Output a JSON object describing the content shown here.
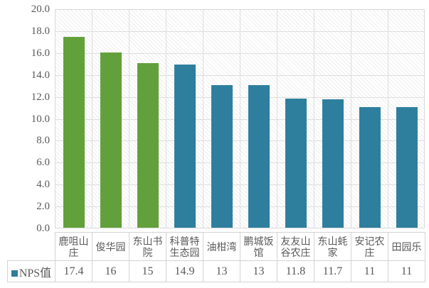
{
  "chart_data": {
    "type": "bar",
    "title": "",
    "series_name": "NPS值",
    "categories": [
      "鹿咀山庄",
      "俊华园",
      "东山书院",
      "科普特生态园",
      "油柑湾",
      "鹏城饭馆",
      "友友山谷农庄",
      "东山蚝家",
      "安记农庄",
      "田园乐"
    ],
    "values": [
      17.4,
      16,
      15,
      14.9,
      13,
      13,
      11.8,
      11.7,
      11,
      11
    ],
    "value_labels": [
      "17.4",
      "16",
      "15",
      "14.9",
      "13",
      "13",
      "11.8",
      "11.7",
      "11",
      "11"
    ],
    "xlabel": "",
    "ylabel": "",
    "ylim": [
      0,
      20
    ],
    "ytick_step": 2,
    "ytick_labels": [
      "0.0",
      "2.0",
      "4.0",
      "6.0",
      "8.0",
      "10.0",
      "12.0",
      "14.0",
      "16.0",
      "18.0",
      "20.0"
    ],
    "grid": true,
    "plot_background_pattern": "light-diagonal-hatch",
    "legend_position": "bottom-table-left",
    "bar_colors": [
      "#62A03C",
      "#62A03C",
      "#62A03C",
      "#2E7F9E",
      "#2E7F9E",
      "#2E7F9E",
      "#2E7F9E",
      "#2E7F9E",
      "#2E7F9E",
      "#2E7F9E"
    ],
    "colors": {
      "green": "#62A03C",
      "teal": "#2E7F9E",
      "gridline": "#DEDEDE",
      "plot_border": "#D9D9D9",
      "table_border": "#D3D3D3",
      "text": "#595959",
      "legend_swatch": "#2E7F9E"
    }
  }
}
